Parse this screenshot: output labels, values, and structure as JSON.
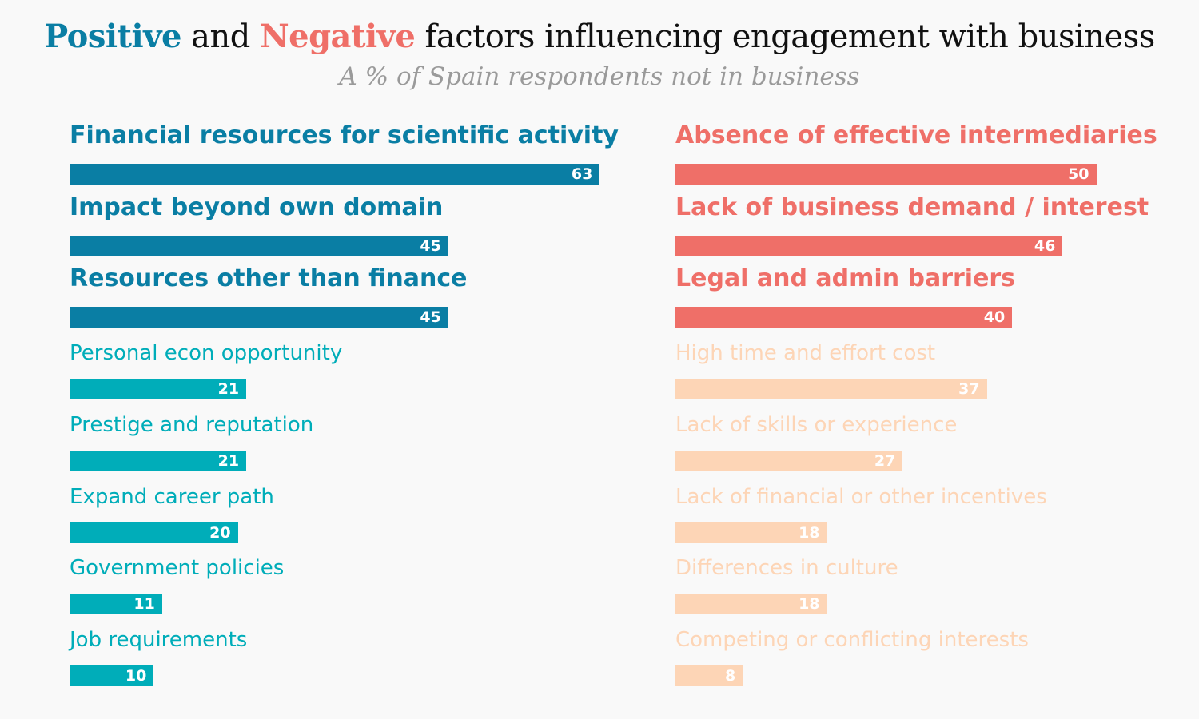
{
  "title": {
    "positive_word": "Positive",
    "connector": " and ",
    "negative_word": "Negative",
    "rest": " factors influencing engagement with business"
  },
  "subtitle": "A % of Spain respondents not in business",
  "colors": {
    "positive_top": "#0a7ea4",
    "positive_rest": "#00adb9",
    "negative_top": "#ef6f68",
    "negative_rest": "#fdd5b6"
  },
  "chart_data": [
    {
      "type": "bar",
      "orientation": "horizontal",
      "categories": [
        "Financial resources for scientific activity",
        "Impact beyond own domain",
        "Resources other than finance",
        "Personal econ opportunity",
        "Prestige and reputation",
        "Expand career path",
        "Government policies",
        "Job requirements"
      ],
      "values": [
        63,
        45,
        45,
        21,
        21,
        20,
        11,
        10
      ],
      "highlighted_top": 3,
      "xlim": [
        0,
        66
      ]
    },
    {
      "type": "bar",
      "orientation": "horizontal",
      "categories": [
        "Absence of effective intermediaries",
        "Lack of business demand / interest",
        "Legal and admin barriers",
        "High time and effort cost",
        "Lack of skills or experience",
        "Lack of financial or other incentives",
        "Differences in culture",
        "Competing or conflicting interests"
      ],
      "values": [
        50,
        46,
        40,
        37,
        27,
        18,
        18,
        8
      ],
      "highlighted_top": 3,
      "xlim": [
        0,
        66
      ]
    }
  ]
}
